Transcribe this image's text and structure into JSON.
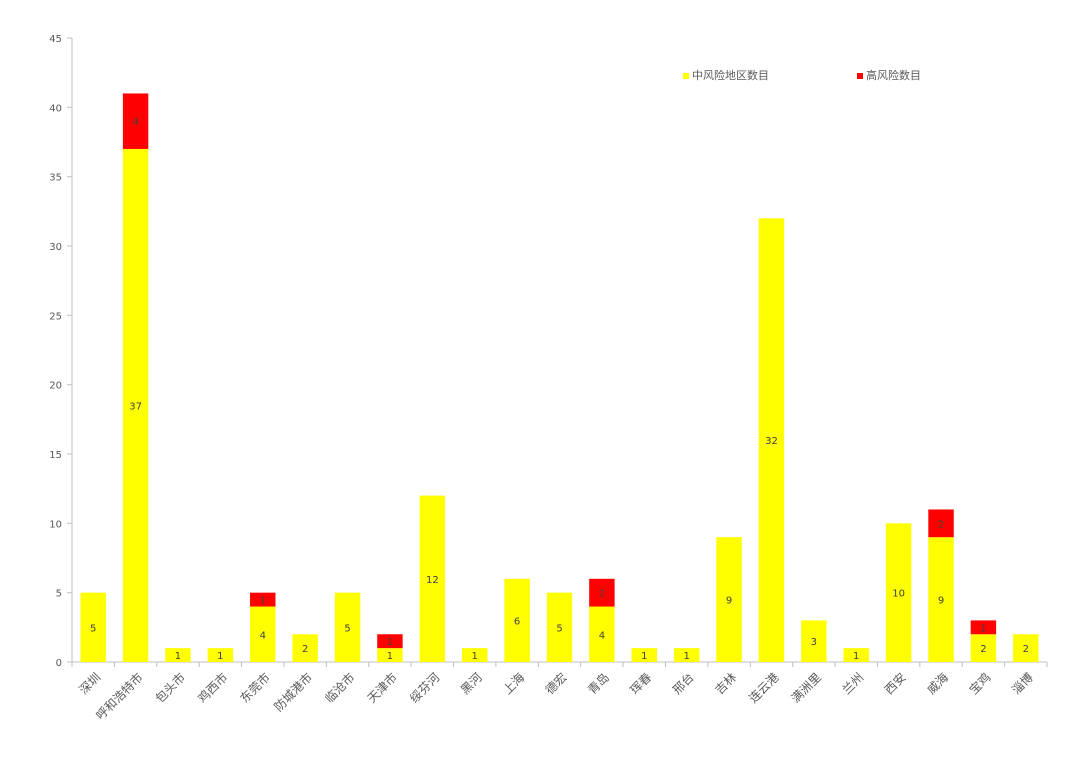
{
  "chart_data": {
    "type": "bar",
    "stacked": true,
    "title": "",
    "xlabel": "",
    "ylabel": "",
    "ylim": [
      0,
      45
    ],
    "yticks": [
      0,
      5,
      10,
      15,
      20,
      25,
      30,
      35,
      40,
      45
    ],
    "grid": false,
    "legend_position": "top-right",
    "categories": [
      "深圳",
      "呼和浩特市",
      "包头市",
      "鸡西市",
      "东莞市",
      "防城港市",
      "临沧市",
      "天津市",
      "绥芬河",
      "黑河",
      "上海",
      "德宏",
      "青岛",
      "珲春",
      "邢台",
      "吉林",
      "连云港",
      "满洲里",
      "兰州",
      "西安",
      "威海",
      "宝鸡",
      "淄博"
    ],
    "series": [
      {
        "name": "中风险地区数目",
        "color": "#FFFF00",
        "values": [
          5,
          37,
          1,
          1,
          4,
          2,
          5,
          1,
          12,
          1,
          6,
          5,
          4,
          1,
          1,
          9,
          32,
          3,
          1,
          10,
          9,
          2,
          2
        ]
      },
      {
        "name": "高风险数目",
        "color": "#FF0000",
        "values": [
          0,
          4,
          0,
          0,
          1,
          0,
          0,
          1,
          0,
          0,
          0,
          0,
          2,
          0,
          0,
          0,
          0,
          0,
          0,
          0,
          2,
          1,
          0
        ]
      }
    ]
  }
}
